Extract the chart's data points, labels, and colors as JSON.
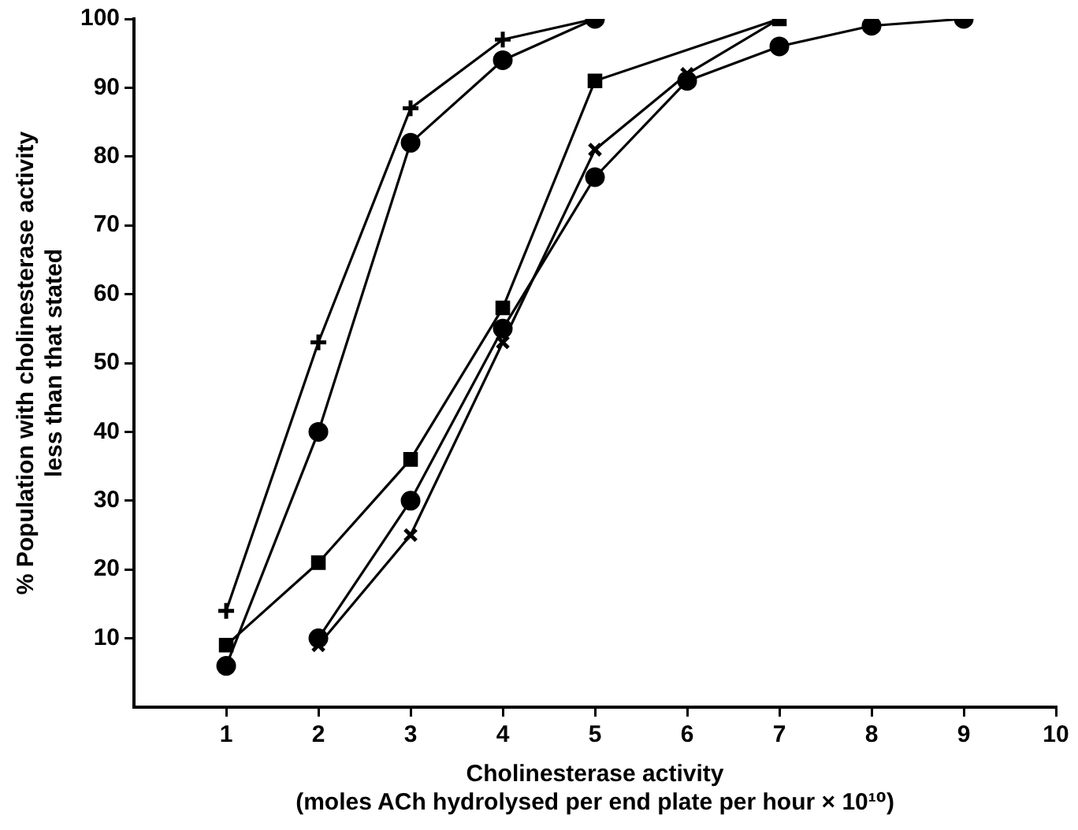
{
  "chart_data": {
    "type": "line",
    "xlabel": "Cholinesterase activity\n(moles ACh hydrolysed per end plate per hour × 10¹⁰)",
    "ylabel": "% Population with cholinesterase activity\nless than that stated",
    "xlim": [
      0,
      10
    ],
    "xticks": [
      1,
      2,
      3,
      4,
      5,
      6,
      7,
      8,
      9,
      10
    ],
    "ylim": [
      0,
      100
    ],
    "yticks": [
      10,
      20,
      30,
      40,
      50,
      60,
      70,
      80,
      90,
      100
    ],
    "grid": false,
    "legend": false,
    "line_style": "solid",
    "series": [
      {
        "color": "#000000",
        "marker": "cross",
        "x": [
          1,
          2,
          3,
          4,
          5
        ],
        "values": [
          14,
          53,
          87,
          97,
          100
        ]
      },
      {
        "color": "#000000",
        "marker": "circle",
        "x": [
          1,
          2,
          3,
          4,
          5
        ],
        "values": [
          6,
          40,
          82,
          94,
          100
        ]
      },
      {
        "color": "#000000",
        "marker": "square",
        "x": [
          1,
          2,
          3,
          4,
          5,
          7
        ],
        "values": [
          9,
          21,
          36,
          58,
          91,
          100
        ]
      },
      {
        "color": "#000000",
        "marker": "circle",
        "x": [
          2,
          3,
          4,
          5,
          6,
          7,
          8,
          9
        ],
        "values": [
          10,
          30,
          55,
          77,
          91,
          96,
          99,
          100
        ]
      },
      {
        "color": "#000000",
        "marker": "x",
        "x": [
          2,
          3,
          4,
          5,
          6,
          7
        ],
        "values": [
          9,
          25,
          53,
          81,
          92,
          100
        ]
      }
    ]
  }
}
